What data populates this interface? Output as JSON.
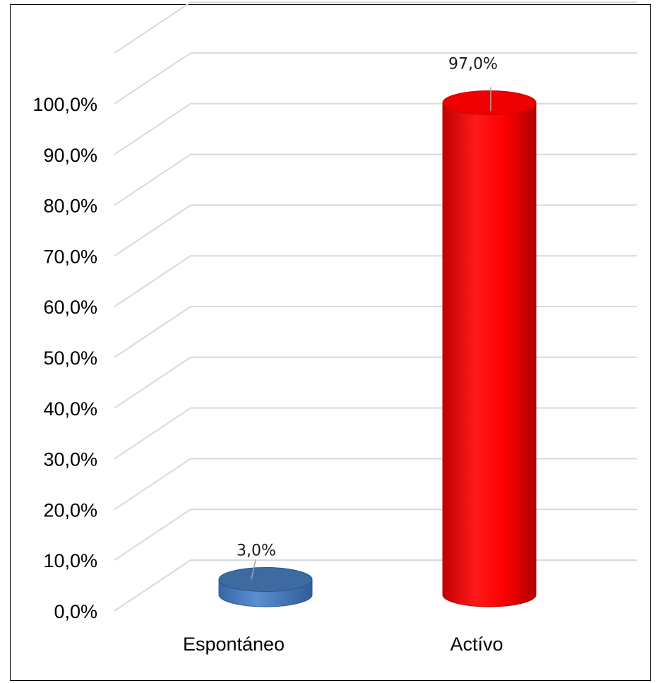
{
  "chart_data": {
    "type": "bar",
    "style": "3d-cylinder",
    "categories": [
      "Espontáneo",
      "Actívo"
    ],
    "values": [
      3.0,
      97.0
    ],
    "data_labels": [
      "3,0%",
      "97,0%"
    ],
    "bar_colors": [
      "#4a7ebb",
      "#ff0000"
    ],
    "ylim": [
      0,
      100
    ],
    "y_ticks": [
      "0,0%",
      "10,0%",
      "20,0%",
      "30,0%",
      "40,0%",
      "50,0%",
      "60,0%",
      "70,0%",
      "80,0%",
      "90,0%",
      "100,0%"
    ],
    "grid": true,
    "legend": "none"
  }
}
